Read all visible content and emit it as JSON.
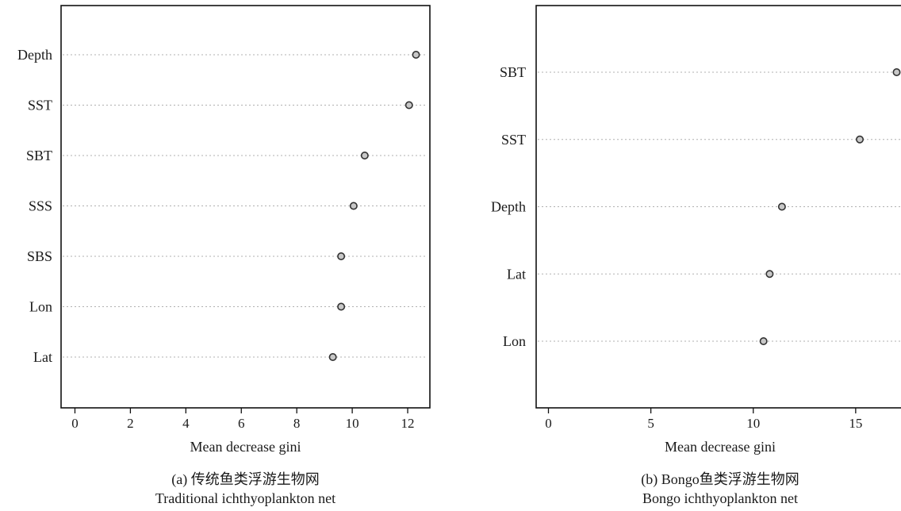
{
  "chart_data": [
    {
      "type": "scatter",
      "categories": [
        "Depth",
        "SST",
        "SBT",
        "SSS",
        "SBS",
        "Lon",
        "Lat"
      ],
      "values": [
        12.3,
        12.05,
        10.45,
        10.05,
        9.6,
        9.6,
        9.3
      ],
      "xlabel": "Mean decrease gini",
      "xlim": [
        -0.5,
        12.8
      ],
      "xticks": [
        0,
        2,
        4,
        6,
        8,
        10,
        12
      ],
      "grid": "horizontal-dotted",
      "caption_line1": "(a) 传统鱼类浮游生物网",
      "caption_line2": "Traditional ichthyoplankton net"
    },
    {
      "type": "scatter",
      "categories": [
        "SBT",
        "SST",
        "Depth",
        "Lat",
        "Lon"
      ],
      "values": [
        17.0,
        15.2,
        11.4,
        10.8,
        10.5
      ],
      "xlabel": "Mean decrease gini",
      "xlim": [
        -0.6,
        17.6
      ],
      "xticks": [
        0,
        5,
        10,
        15
      ],
      "grid": "horizontal-dotted",
      "caption_line1": "(b) Bongo鱼类浮游生物网",
      "caption_line2": "Bongo ichthyoplankton net"
    }
  ]
}
